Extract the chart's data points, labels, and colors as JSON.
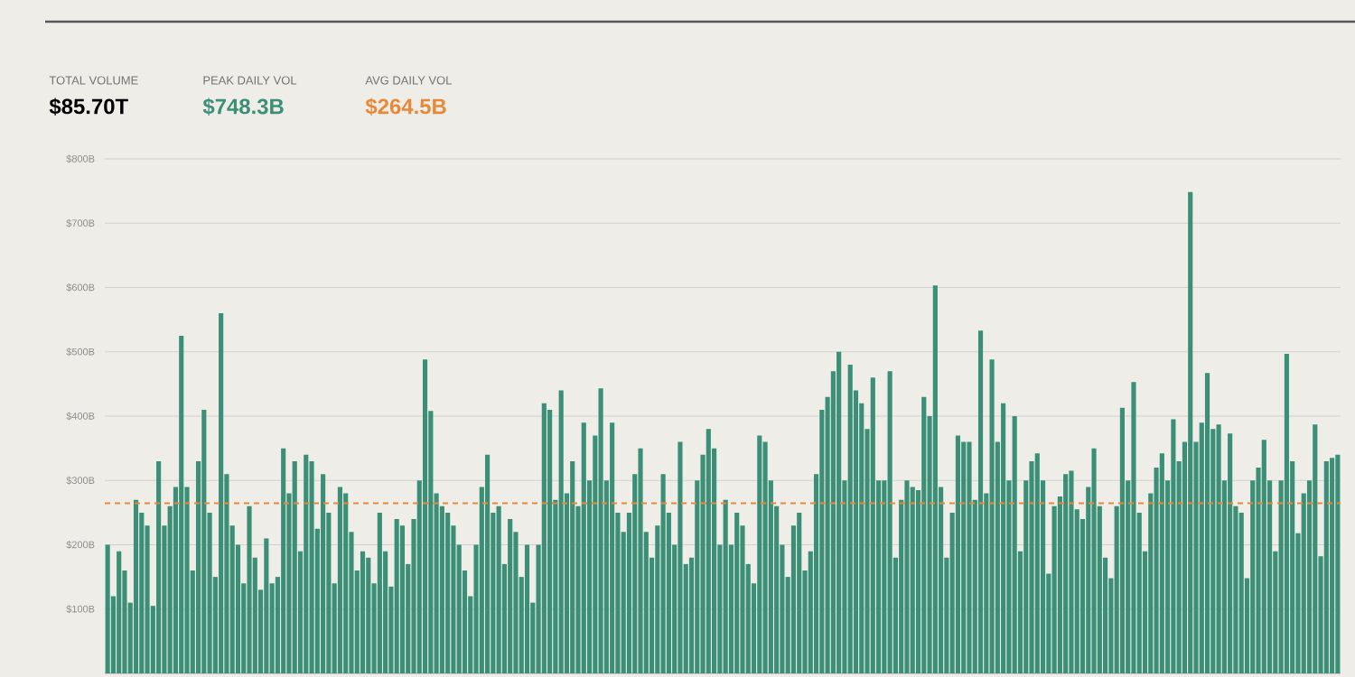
{
  "chart_data": {
    "type": "bar",
    "annotations": [
      "TOTAL VOLUME",
      "PEAK DAILY VOL",
      "AVG DAILY VOL",
      "$85.70T",
      "$748.3B",
      "$264.5B"
    ],
    "categories": [
      null,
      null,
      null,
      null,
      null,
      null,
      null,
      null,
      null,
      null,
      null,
      null,
      null,
      null,
      null,
      null,
      null,
      null,
      null,
      null,
      null,
      null,
      null,
      null,
      null,
      null,
      null,
      null,
      null,
      null,
      null,
      null,
      null,
      null,
      null,
      null,
      null,
      null,
      null,
      null,
      null,
      null,
      null,
      null,
      null,
      null,
      null,
      null,
      null,
      null,
      null,
      null,
      null,
      null,
      null,
      null,
      null,
      null,
      null,
      null,
      null,
      null,
      null,
      null,
      null,
      null,
      null,
      null,
      null,
      null,
      null,
      null,
      null,
      null,
      null,
      null,
      null,
      null,
      null,
      null,
      null,
      null,
      null,
      null,
      null,
      null,
      null,
      null,
      null,
      null,
      null,
      null,
      null,
      null,
      null,
      null,
      null,
      null,
      null,
      null,
      null,
      null,
      null,
      null,
      null,
      null,
      null,
      null,
      null,
      null,
      null,
      null,
      null,
      null,
      null,
      null,
      null,
      null,
      null,
      null,
      null,
      null,
      null,
      null,
      null,
      null,
      null,
      null,
      null,
      null,
      null,
      null,
      null,
      null,
      null,
      null,
      null,
      null,
      null,
      null,
      null,
      null,
      null,
      null,
      null,
      null,
      null,
      null,
      null,
      null,
      null,
      null,
      null,
      null,
      null,
      null,
      null,
      null,
      null,
      null,
      null,
      null,
      null,
      null,
      null,
      null,
      null,
      null,
      null,
      null,
      null,
      null,
      null,
      null,
      null,
      null,
      null,
      null,
      null,
      null,
      null,
      null,
      null,
      null,
      null,
      null,
      null,
      null,
      null,
      null,
      null,
      null,
      null,
      null,
      null,
      null,
      null,
      null,
      null,
      null,
      null,
      null,
      null,
      null,
      null,
      null,
      null,
      null,
      null,
      null,
      null,
      null,
      null,
      null,
      null,
      null,
      null,
      null
    ],
    "values": [
      200,
      120,
      190,
      160,
      110,
      270,
      250,
      230,
      105,
      330,
      230,
      260,
      290,
      525,
      290,
      160,
      330,
      410,
      250,
      150,
      560,
      310,
      230,
      200,
      140,
      260,
      180,
      130,
      210,
      140,
      150,
      350,
      280,
      330,
      190,
      340,
      330,
      225,
      310,
      250,
      140,
      290,
      280,
      220,
      160,
      190,
      180,
      140,
      250,
      190,
      135,
      240,
      230,
      170,
      240,
      300,
      488,
      408,
      280,
      260,
      250,
      230,
      200,
      160,
      120,
      200,
      290,
      340,
      250,
      260,
      170,
      240,
      220,
      150,
      200,
      110,
      200,
      420,
      410,
      270,
      440,
      280,
      330,
      260,
      390,
      300,
      370,
      443,
      300,
      390,
      250,
      220,
      250,
      310,
      350,
      220,
      180,
      230,
      310,
      250,
      200,
      360,
      170,
      180,
      300,
      340,
      380,
      350,
      200,
      270,
      200,
      250,
      230,
      170,
      140,
      370,
      360,
      300,
      260,
      200,
      150,
      230,
      250,
      160,
      190,
      310,
      410,
      430,
      470,
      500,
      300,
      480,
      440,
      420,
      380,
      460,
      300,
      300,
      470,
      180,
      270,
      300,
      290,
      285,
      430,
      400,
      603,
      290,
      180,
      250,
      370,
      360,
      360,
      270,
      533,
      280,
      488,
      360,
      420,
      300,
      400,
      190,
      300,
      330,
      342,
      300,
      155,
      260,
      275,
      310,
      315,
      255,
      240,
      290,
      350,
      260,
      180,
      148,
      260,
      413,
      300,
      453,
      250,
      190,
      280,
      320,
      342,
      300,
      395,
      330,
      360,
      748.3,
      360,
      390,
      467,
      380,
      387,
      300,
      373,
      260,
      250,
      148,
      300,
      320,
      363,
      300,
      190,
      300,
      497,
      330,
      218,
      280,
      300,
      387,
      182,
      330,
      335,
      340
    ],
    "color": "#3a8f76",
    "ylim": [
      0,
      800
    ],
    "yticks": [
      {
        "value": 100,
        "label": "$100B"
      },
      {
        "value": 200,
        "label": "$200B"
      },
      {
        "value": 300,
        "label": "$300B"
      },
      {
        "value": 400,
        "label": "$400B"
      },
      {
        "value": 500,
        "label": "$500B"
      },
      {
        "value": 600,
        "label": "$600B"
      },
      {
        "value": 700,
        "label": "$700B"
      },
      {
        "value": 800,
        "label": "$800B"
      }
    ],
    "grid": "y",
    "tick_labels": "y",
    "ref_lines": [
      {
        "axis": "y",
        "value": 264.5,
        "color": "#e8893a",
        "line_style": "dashed"
      }
    ]
  }
}
